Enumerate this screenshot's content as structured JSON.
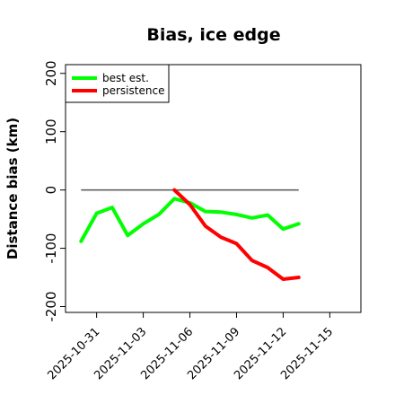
{
  "chart_data": {
    "type": "line",
    "title": "Bias, ice edge",
    "xlabel": "",
    "ylabel": "Distance bias (km)",
    "ylim": [
      -210,
      215
    ],
    "xlim": [
      "2025-10-29",
      "2025-11-17"
    ],
    "x_ticks": [
      "2025-10-31",
      "2025-11-03",
      "2025-11-06",
      "2025-11-09",
      "2025-11-12",
      "2025-11-15"
    ],
    "y_ticks": [
      -200,
      -100,
      0,
      100,
      200
    ],
    "reference_line": {
      "y": 0,
      "x_start": "2025-10-30",
      "x_end": "2025-11-13",
      "color": "#555555"
    },
    "grid": false,
    "legend_position": "top-left",
    "series": [
      {
        "name": "best est.",
        "color": "#00ff00",
        "x": [
          "2025-10-30",
          "2025-10-31",
          "2025-11-01",
          "2025-11-02",
          "2025-11-03",
          "2025-11-04",
          "2025-11-05",
          "2025-11-06",
          "2025-11-07",
          "2025-11-08",
          "2025-11-09",
          "2025-11-10",
          "2025-11-11",
          "2025-11-12",
          "2025-11-13"
        ],
        "values": [
          -88,
          -40,
          -30,
          -78,
          -58,
          -42,
          -15,
          -22,
          -37,
          -38,
          -42,
          -48,
          -43,
          -67,
          -58
        ]
      },
      {
        "name": "persistence",
        "color": "#ff0000",
        "x": [
          "2025-11-05",
          "2025-11-06",
          "2025-11-07",
          "2025-11-08",
          "2025-11-09",
          "2025-11-10",
          "2025-11-11",
          "2025-11-12",
          "2025-11-13"
        ],
        "values": [
          0,
          -25,
          -62,
          -81,
          -92,
          -121,
          -133,
          -153,
          -150
        ]
      }
    ]
  }
}
